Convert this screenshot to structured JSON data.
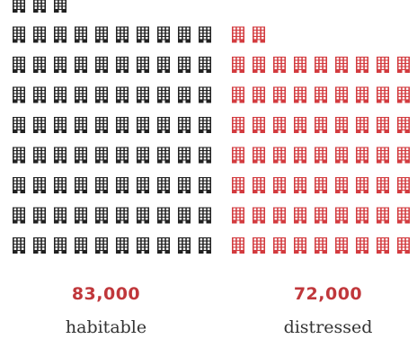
{
  "chart_data": {
    "type": "pictogram",
    "unit_icon": "building-icon",
    "series": [
      {
        "value_label": "83,000",
        "label": "habitable",
        "icon_count": 83,
        "icon_color": "#222222",
        "value_color": "#c0373b"
      },
      {
        "value_label": "72,000",
        "label": "distressed",
        "icon_count": 72,
        "icon_color": "#d33b3f",
        "value_color": "#c0373b"
      }
    ]
  }
}
